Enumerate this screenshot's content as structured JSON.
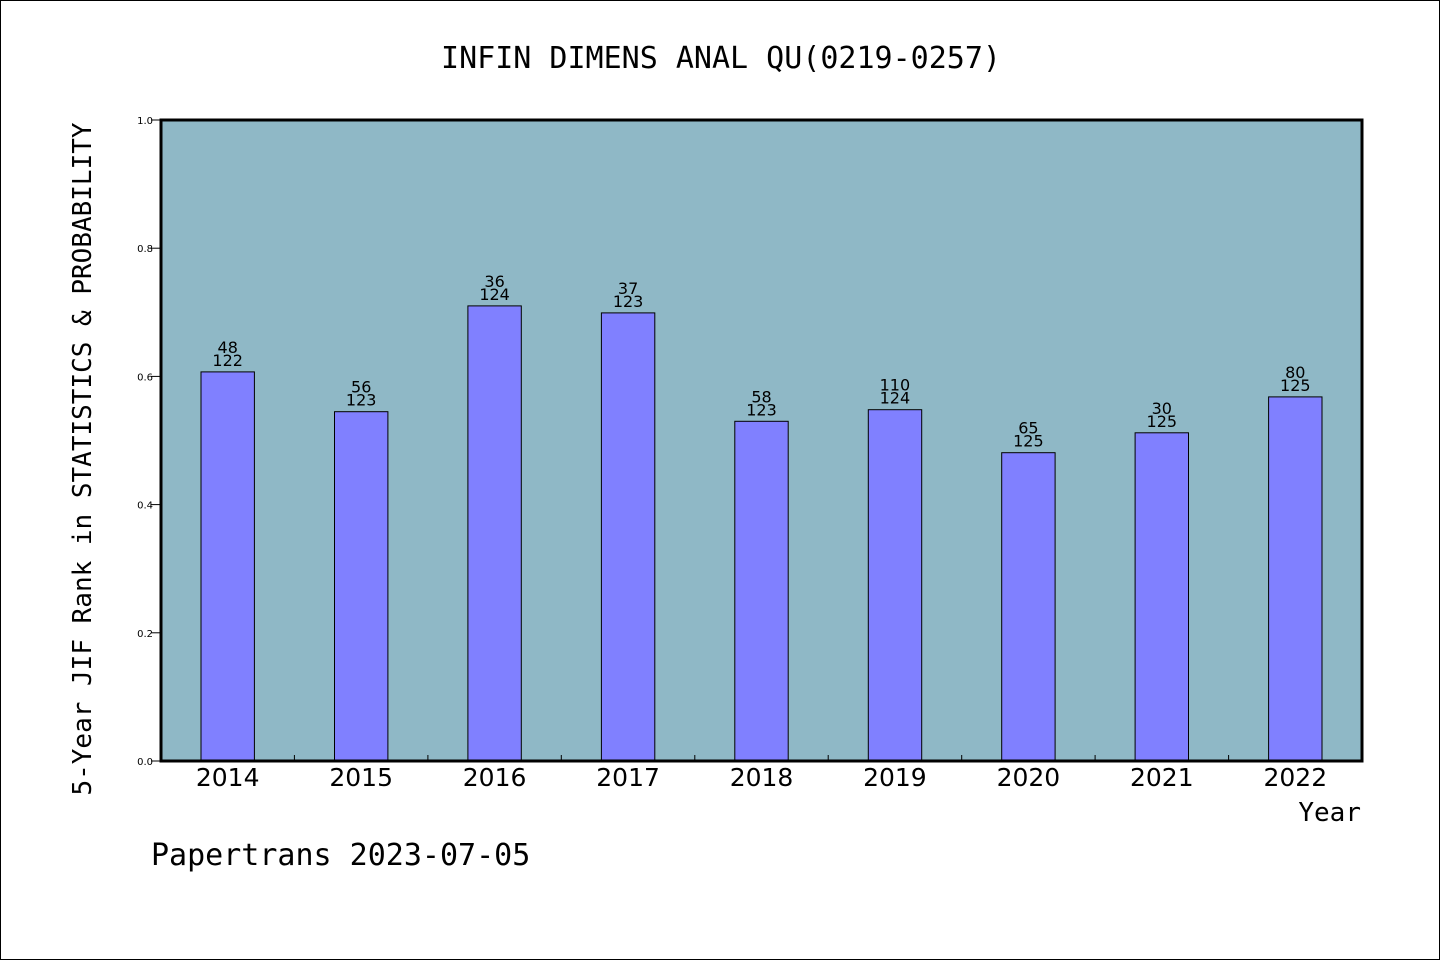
{
  "chart_data": {
    "type": "bar",
    "title": "INFIN DIMENS ANAL QU(0219-0257)",
    "xlabel": "Year",
    "ylabel": "5-Year JIF Rank in STATISTICS & PROBABILITY",
    "categories": [
      "2014",
      "2015",
      "2016",
      "2017",
      "2018",
      "2019",
      "2020",
      "2021",
      "2022"
    ],
    "values": [
      0.607,
      0.545,
      0.71,
      0.699,
      0.53,
      0.548,
      0.481,
      0.512,
      0.568
    ],
    "rank_labels": [
      "48",
      "56",
      "36",
      "37",
      "58",
      "110",
      "65",
      "30",
      "80"
    ],
    "total_labels": [
      "122",
      "123",
      "124",
      "123",
      "123",
      "124",
      "125",
      "125",
      "125"
    ],
    "ylim": [
      0,
      1.0
    ],
    "yticks": [
      "0.0",
      "0.2",
      "0.4",
      "0.6",
      "0.8",
      "1.0"
    ],
    "grid": false,
    "legend": "none",
    "colors": {
      "plot_background": "#8fb8c6",
      "bar_fill": "#8080ff",
      "bar_stroke": "#000000"
    }
  },
  "footer": {
    "text": "Papertrans 2023-07-05"
  }
}
